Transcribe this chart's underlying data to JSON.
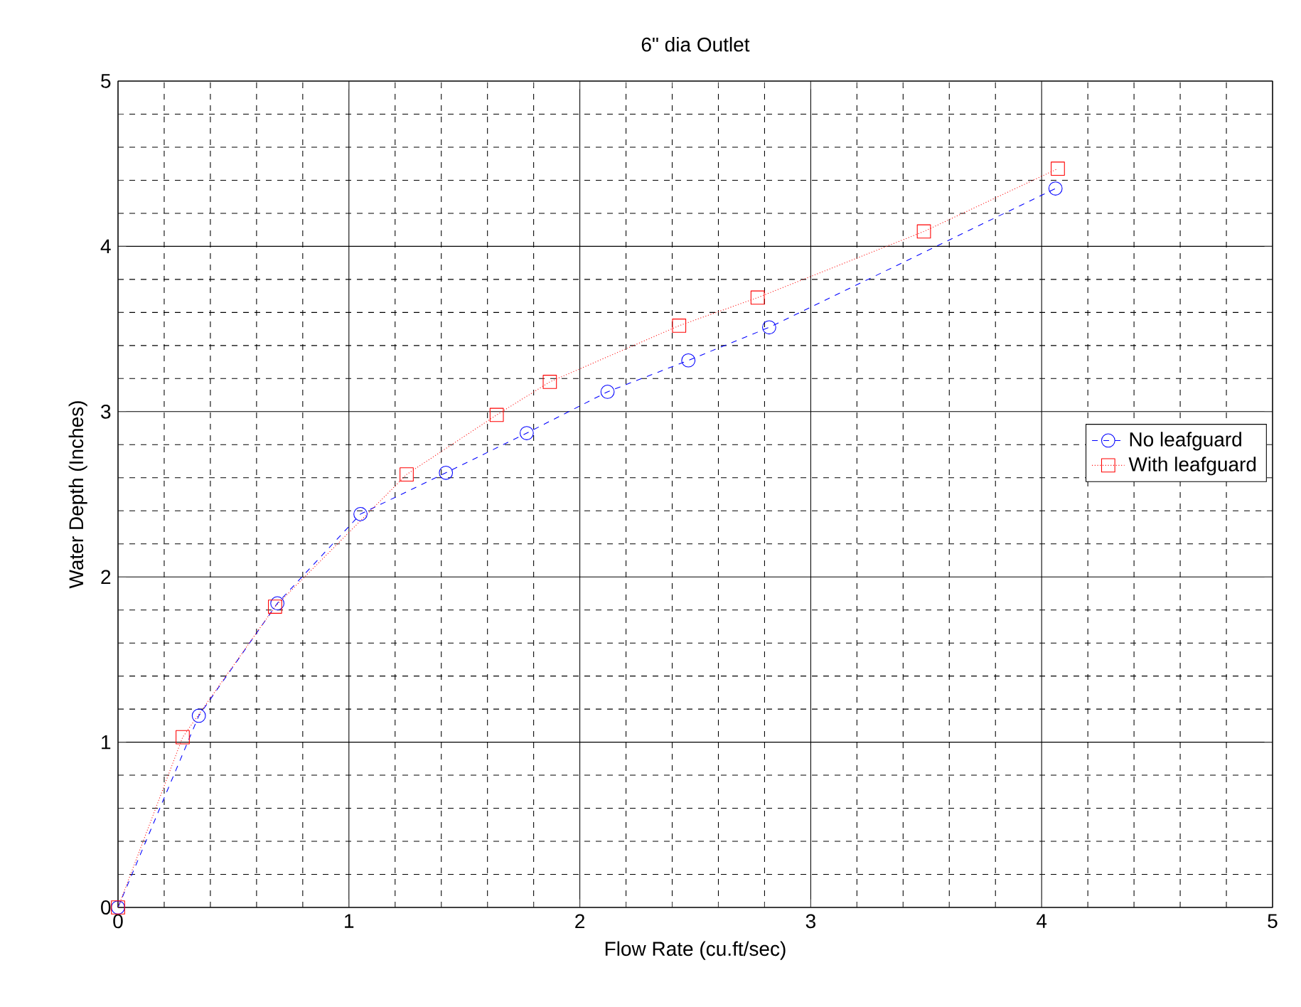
{
  "chart_data": {
    "type": "line",
    "title": "6\" dia Outlet",
    "xlabel": "Flow Rate (cu.ft/sec)",
    "ylabel": "Water Depth (Inches)",
    "xlim": [
      0,
      5
    ],
    "ylim": [
      0,
      5
    ],
    "xticks": [
      0,
      1,
      2,
      3,
      4,
      5
    ],
    "yticks": [
      0,
      1,
      2,
      3,
      4,
      5
    ],
    "grid": true,
    "legend": "right",
    "series": [
      {
        "name": "No leafguard",
        "color": "#0000ff",
        "marker": "circle",
        "line_style": "dashed",
        "x": [
          0,
          0.35,
          0.69,
          1.05,
          1.42,
          1.77,
          2.12,
          2.47,
          2.82,
          4.06
        ],
        "values": [
          0,
          1.16,
          1.84,
          2.38,
          2.63,
          2.87,
          3.12,
          3.31,
          3.51,
          4.35
        ]
      },
      {
        "name": "With  leafguard",
        "color": "#ff0000",
        "marker": "square",
        "line_style": "dotted",
        "x": [
          0,
          0.28,
          0.68,
          1.25,
          1.64,
          1.87,
          2.43,
          2.77,
          3.49,
          4.07
        ],
        "values": [
          0,
          1.03,
          1.82,
          2.62,
          2.98,
          3.18,
          3.52,
          3.69,
          4.09,
          4.47
        ]
      }
    ]
  }
}
